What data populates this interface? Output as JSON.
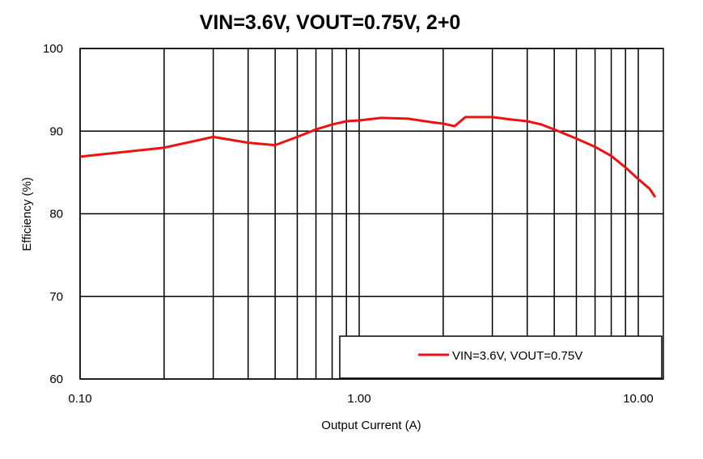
{
  "chart_data": {
    "type": "line",
    "title": "VIN=3.6V, VOUT=0.75V, 2+0",
    "xlabel": "Output Current (A)",
    "ylabel": "Efficiency (%)",
    "x_scale": "log",
    "xlim": [
      0.1,
      12
    ],
    "ylim": [
      60,
      100
    ],
    "x_ticks": [
      0.1,
      1,
      10
    ],
    "x_tick_labels": [
      "0.10",
      "1.00",
      "10.00"
    ],
    "y_ticks": [
      60,
      70,
      80,
      90,
      100
    ],
    "y_tick_labels": [
      "60",
      "70",
      "80",
      "90",
      "100"
    ],
    "grid": true,
    "legend_position": "bottom-right",
    "series": [
      {
        "name": "VIN=3.6V, VOUT=0.75V",
        "color": "#ee1111",
        "x": [
          0.1,
          0.2,
          0.3,
          0.4,
          0.5,
          0.6,
          0.7,
          0.8,
          0.9,
          1.0,
          1.2,
          1.5,
          1.8,
          2.0,
          2.2,
          2.4,
          3.0,
          3.5,
          4.0,
          4.5,
          5.0,
          6.0,
          7.0,
          8.0,
          9.0,
          10.0,
          11.0,
          11.5
        ],
        "y": [
          86.9,
          88.0,
          89.3,
          88.6,
          88.3,
          89.3,
          90.2,
          90.8,
          91.2,
          91.3,
          91.6,
          91.5,
          91.1,
          90.9,
          90.6,
          91.7,
          91.7,
          91.4,
          91.2,
          90.8,
          90.2,
          89.1,
          88.1,
          87.0,
          85.6,
          84.2,
          83.0,
          82.0
        ]
      }
    ]
  }
}
